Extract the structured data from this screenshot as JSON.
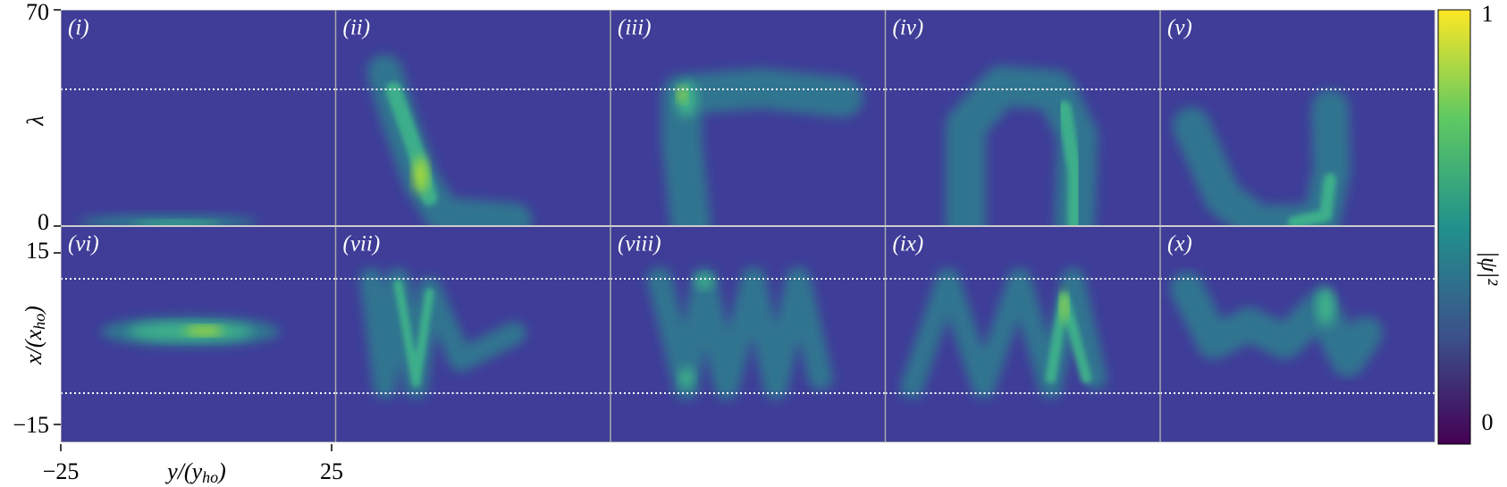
{
  "panels": [
    {
      "label": "(i)"
    },
    {
      "label": "(ii)"
    },
    {
      "label": "(iii)"
    },
    {
      "label": "(iv)"
    },
    {
      "label": "(v)"
    },
    {
      "label": "(vi)"
    },
    {
      "label": "(vii)"
    },
    {
      "label": "(viii)"
    },
    {
      "label": "(ix)"
    },
    {
      "label": "(x)"
    }
  ],
  "top_axis": {
    "label": "λ",
    "ticks": [
      "70",
      "0"
    ]
  },
  "bottom_axis": {
    "label": {
      "main": "x/(x",
      "sub": "ho",
      "close": ")"
    },
    "ticks": [
      "15",
      "−15"
    ]
  },
  "x_axis": {
    "label": {
      "main": "y/(y",
      "sub": "ho",
      "close": ")"
    },
    "ticks": [
      "−25",
      "25"
    ]
  },
  "colorbar": {
    "label": "|ψ|²",
    "ticks": [
      "1",
      "0"
    ]
  }
}
